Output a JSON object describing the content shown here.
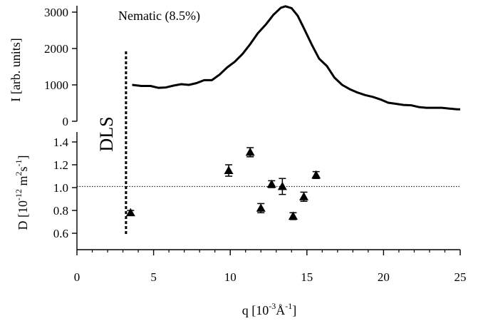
{
  "chart_data": [
    {
      "type": "line",
      "panel": "top",
      "annotation": "Nematic (8.5%)",
      "ylabel": "I [arb. units]",
      "ylim": [
        0,
        3200
      ],
      "yticks": [
        "0",
        "1000",
        "2000",
        "3000"
      ],
      "grid": false,
      "series": [
        {
          "x": [
            3.6,
            4.2,
            4.8,
            5.3,
            5.8,
            6.3,
            6.8,
            7.3,
            7.8,
            8.3,
            8.8,
            9.3,
            9.8,
            10.3,
            10.8,
            11.3,
            11.8,
            12.3,
            12.8,
            13.3,
            13.6,
            14.0,
            14.4,
            14.8,
            15.3,
            15.8,
            16.3,
            16.8,
            17.3,
            17.8,
            18.3,
            18.8,
            19.3,
            19.8,
            20.3,
            20.8,
            21.3,
            21.8,
            22.3,
            22.8,
            23.3,
            23.8,
            24.3,
            24.8,
            25.0
          ],
          "y": [
            1000,
            970,
            970,
            920,
            930,
            980,
            1020,
            1000,
            1050,
            1130,
            1130,
            1280,
            1480,
            1640,
            1850,
            2120,
            2420,
            2650,
            2920,
            3120,
            3160,
            3110,
            2900,
            2560,
            2120,
            1720,
            1520,
            1200,
            1000,
            880,
            790,
            720,
            670,
            600,
            510,
            480,
            450,
            440,
            390,
            370,
            370,
            370,
            350,
            330,
            330
          ]
        }
      ]
    },
    {
      "type": "scatter",
      "panel": "bottom",
      "label": "DLS",
      "xlabel_parts": [
        "q [10",
        "-3",
        "Å",
        "-1",
        "]"
      ],
      "ylabel_parts": [
        "D [10",
        "-12",
        " m",
        "2",
        "s",
        "-1",
        "]"
      ],
      "xlim": [
        0,
        25
      ],
      "ylim": [
        0.6,
        1.5
      ],
      "xticks": [
        "0",
        "5",
        "10",
        "15",
        "20",
        "25"
      ],
      "yticks": [
        "0.6",
        "0.8",
        "1.0",
        "1.2",
        "1.4"
      ],
      "reference_line_y": 1.01,
      "dls_line_x": 3.2,
      "grid": false,
      "points": [
        {
          "x": 3.5,
          "y": 0.78,
          "err": 0.02
        },
        {
          "x": 9.9,
          "y": 1.15,
          "err": 0.05
        },
        {
          "x": 11.3,
          "y": 1.31,
          "err": 0.04
        },
        {
          "x": 12.0,
          "y": 0.82,
          "err": 0.04
        },
        {
          "x": 12.7,
          "y": 1.03,
          "err": 0.03
        },
        {
          "x": 13.4,
          "y": 1.01,
          "err": 0.07
        },
        {
          "x": 14.1,
          "y": 0.75,
          "err": 0.03
        },
        {
          "x": 14.8,
          "y": 0.92,
          "err": 0.04
        },
        {
          "x": 15.6,
          "y": 1.11,
          "err": 0.03
        }
      ]
    }
  ]
}
